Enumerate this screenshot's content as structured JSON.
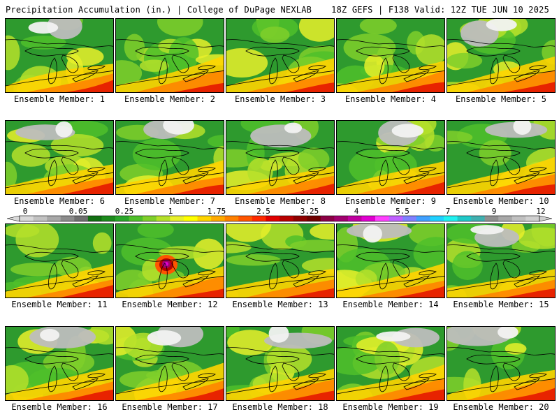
{
  "header": {
    "left": "Precipitation Accumulation (in.) | College of DuPage NEXLAB",
    "right": "18Z GEFS | F138 Valid: 12Z TUE JUN 10 2025"
  },
  "panel_label_prefix": "Ensemble Member: ",
  "members": [
    {
      "id": "1",
      "label": "Ensemble Member: 1"
    },
    {
      "id": "2",
      "label": "Ensemble Member: 2"
    },
    {
      "id": "3",
      "label": "Ensemble Member: 3"
    },
    {
      "id": "4",
      "label": "Ensemble Member: 4"
    },
    {
      "id": "5",
      "label": "Ensemble Member: 5"
    },
    {
      "id": "6",
      "label": "Ensemble Member: 6"
    },
    {
      "id": "7",
      "label": "Ensemble Member: 7"
    },
    {
      "id": "8",
      "label": "Ensemble Member: 8"
    },
    {
      "id": "9",
      "label": "Ensemble Member: 9"
    },
    {
      "id": "10",
      "label": "Ensemble Member: 10"
    },
    {
      "id": "11",
      "label": "Ensemble Member: 11"
    },
    {
      "id": "12",
      "label": "Ensemble Member: 12"
    },
    {
      "id": "13",
      "label": "Ensemble Member: 13"
    },
    {
      "id": "14",
      "label": "Ensemble Member: 14"
    },
    {
      "id": "15",
      "label": "Ensemble Member: 15"
    },
    {
      "id": "16",
      "label": "Ensemble Member: 16"
    },
    {
      "id": "17",
      "label": "Ensemble Member: 17"
    },
    {
      "id": "18",
      "label": "Ensemble Member: 18"
    },
    {
      "id": "19",
      "label": "Ensemble Member: 19"
    },
    {
      "id": "20",
      "label": "Ensemble Member: 20"
    }
  ],
  "colorbar": {
    "tick_labels": [
      "0",
      "0.05",
      "0.25",
      "1",
      "1.75",
      "2.5",
      "3.25",
      "4",
      "5.5",
      "7",
      "9",
      "12"
    ],
    "colors": [
      "#d9d9d9",
      "#c2c2c2",
      "#a8a8a8",
      "#8c8c8c",
      "#6f6f6f",
      "#116f11",
      "#1c8a1c",
      "#2aa52a",
      "#4fbf2a",
      "#7fcf2a",
      "#b5e02a",
      "#e8f02a",
      "#ffff00",
      "#ffd400",
      "#ffaa00",
      "#ff8000",
      "#ff5500",
      "#ff2a00",
      "#e00000",
      "#b80000",
      "#900000",
      "#700000",
      "#8b0045",
      "#a0006e",
      "#c000a0",
      "#e000d0",
      "#ff40ff",
      "#c060ff",
      "#8080ff",
      "#40a0ff",
      "#20d0ff",
      "#20f0f0",
      "#20c8c8",
      "#40b0b0",
      "#909090",
      "#a8a8a8",
      "#c0c0c0",
      "#d0d0d0"
    ]
  }
}
